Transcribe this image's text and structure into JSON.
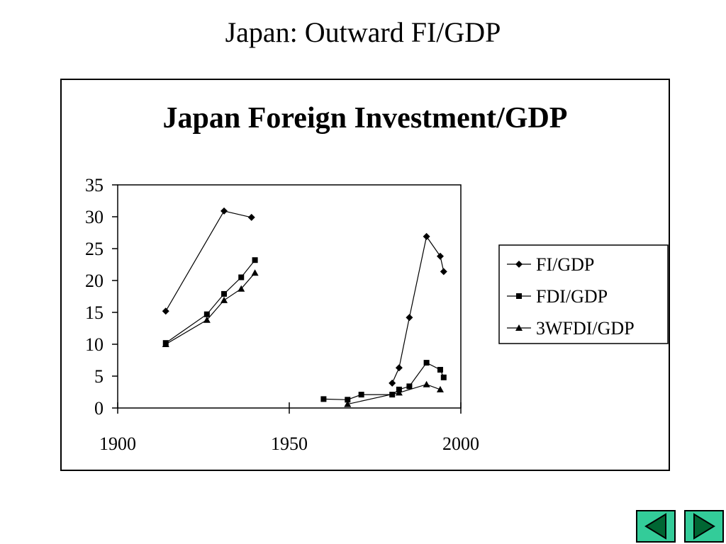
{
  "slide": {
    "title": "Japan: Outward FI/GDP"
  },
  "chart_data": {
    "type": "line",
    "title": "Japan Foreign Investment/GDP",
    "xlabel": "",
    "ylabel": "",
    "xlim": [
      1900,
      2000
    ],
    "ylim": [
      0,
      35
    ],
    "x_ticks": [
      1900,
      1950,
      2000
    ],
    "y_ticks": [
      0,
      5,
      10,
      15,
      20,
      25,
      30,
      35
    ],
    "grid": false,
    "legend_position": "right",
    "series": [
      {
        "name": "FI/GDP",
        "marker": "diamond",
        "segments": [
          [
            [
              1914,
              15.2
            ],
            [
              1931,
              30.9
            ],
            [
              1939,
              29.9
            ]
          ],
          [
            [
              1980,
              3.9
            ],
            [
              1982,
              6.3
            ],
            [
              1985,
              14.2
            ],
            [
              1990,
              26.9
            ],
            [
              1994,
              23.8
            ],
            [
              1995,
              21.4
            ]
          ]
        ]
      },
      {
        "name": "FDI/GDP",
        "marker": "square",
        "segments": [
          [
            [
              1914,
              10.2
            ],
            [
              1926,
              14.7
            ],
            [
              1931,
              17.9
            ],
            [
              1936,
              20.5
            ],
            [
              1940,
              23.2
            ]
          ],
          [
            [
              1960,
              1.4
            ],
            [
              1967,
              1.3
            ],
            [
              1971,
              2.1
            ],
            [
              1980,
              2.1
            ],
            [
              1982,
              2.9
            ],
            [
              1985,
              3.4
            ],
            [
              1990,
              7.1
            ],
            [
              1994,
              6.0
            ],
            [
              1995,
              4.8
            ]
          ]
        ]
      },
      {
        "name": "3WFDI/GDP",
        "marker": "triangle",
        "segments": [
          [
            [
              1914,
              10.0
            ],
            [
              1926,
              13.8
            ],
            [
              1931,
              16.9
            ],
            [
              1936,
              18.7
            ],
            [
              1940,
              21.2
            ]
          ],
          [
            [
              1967,
              0.6
            ],
            [
              1982,
              2.4
            ],
            [
              1990,
              3.7
            ],
            [
              1994,
              2.9
            ]
          ]
        ]
      }
    ]
  },
  "navigation": {
    "prev_icon": "triangle-left-icon",
    "next_icon": "triangle-right-icon",
    "button_color": "#33cc99"
  }
}
